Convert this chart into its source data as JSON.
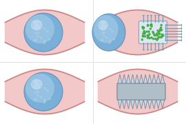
{
  "bg_color": "#f5f5f5",
  "gi_tract_fill": "#f2c8c8",
  "gi_tract_stroke": "#cc8888",
  "capsule_blue_base": "#7ab0d8",
  "capsule_blue_light": "#b8d8f0",
  "capsule_blue_highlight": "#d8eaf8",
  "capsule_dot_color": "#b0cce0",
  "needle_body_fill": "#dce8f0",
  "needle_body_stroke": "#90a8bc",
  "drug_dot_color": "#44aa44",
  "hollow_needle_fill": "#d0e0ec",
  "hollow_needle_stroke": "#7a9ab0",
  "solid_body_fill": "#b0bec8",
  "solid_body_stroke": "#7a8a98",
  "solid_needle_fill": "#c8d8e8",
  "solid_needle_stroke": "#8090a0",
  "divider_color": "#dddddd",
  "panel_bg": "#ffffff"
}
